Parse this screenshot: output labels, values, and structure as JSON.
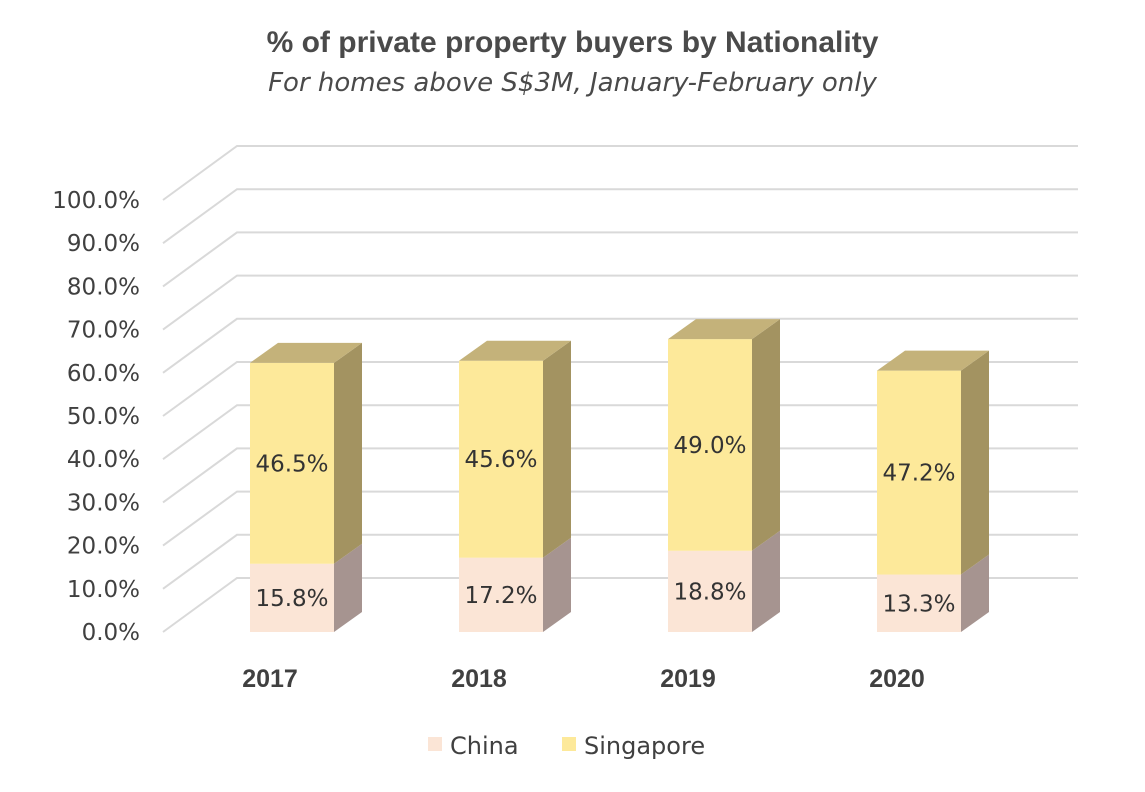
{
  "chart_data": {
    "type": "bar",
    "stacked": true,
    "three_d": true,
    "title": "% of private property buyers by Nationality",
    "subtitle": "For homes above S$3M, January-February only",
    "categories": [
      "2017",
      "2018",
      "2019",
      "2020"
    ],
    "series": [
      {
        "name": "China",
        "values": [
          15.8,
          17.2,
          18.8,
          13.3
        ],
        "labels": [
          "15.8%",
          "17.2%",
          "18.8%",
          "13.3%"
        ]
      },
      {
        "name": "Singapore",
        "values": [
          46.5,
          45.6,
          49.0,
          47.2
        ],
        "labels": [
          "46.5%",
          "45.6%",
          "49.0%",
          "47.2%"
        ]
      }
    ],
    "y_ticks": [
      "0.0%",
      "10.0%",
      "20.0%",
      "30.0%",
      "40.0%",
      "50.0%",
      "60.0%",
      "70.0%",
      "80.0%",
      "90.0%",
      "100.0%"
    ],
    "ylim": [
      0,
      100
    ],
    "grid": true,
    "legend_position": "bottom"
  },
  "colors": {
    "china_front": "#fbe5d6",
    "china_side": "#a69490",
    "singapore_front": "#fde99a",
    "singapore_side": "#a39361",
    "singapore_top": "#c4b27a",
    "grid": "#d9d9d9"
  }
}
